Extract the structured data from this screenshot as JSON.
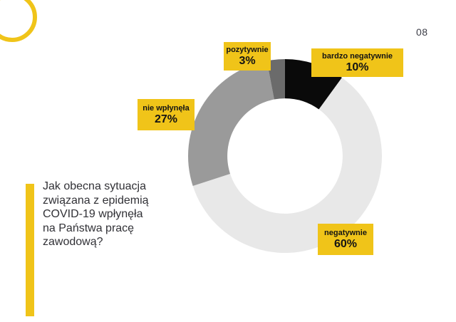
{
  "page": {
    "number": "08",
    "background": "#ffffff",
    "accent_yellow": "#f0c419"
  },
  "question": {
    "text": "Jak obecna sytuacja związana z epidemią COVID-19 wpłynęła na Państwa pracę zawodową?",
    "lines": [
      "Jak obecna sytuacja",
      "związana z epidemią",
      "COVID-19 wpłynęła",
      "na Państwa pracę",
      "zawodową?"
    ]
  },
  "chart_data": {
    "type": "pie",
    "variant": "donut",
    "title": "Jak obecna sytuacja związana z epidemią COVID-19 wpłynęła na Państwa pracę zawodową?",
    "labels": [
      "bardzo negatywnie",
      "negatywnie",
      "nie wpłynęła",
      "pozytywnie"
    ],
    "values": [
      10,
      60,
      27,
      3
    ],
    "unit": "%",
    "colors": [
      "#0a0a0a",
      "#e8e8e8",
      "#9a9a9a",
      "#6b6b6b"
    ],
    "start_angle_deg": 0,
    "clockwise": true,
    "inner_radius_ratio": 0.595,
    "callout_bg": "#f0c419",
    "callouts": [
      {
        "label": "pozytywnie",
        "value": "3%"
      },
      {
        "label": "bardzo negatywnie",
        "value": "10%"
      },
      {
        "label": "nie wpłynęła",
        "value": "27%"
      },
      {
        "label": "negatywnie",
        "value": "60%"
      }
    ]
  },
  "decor": {
    "ring_color": "#f0c419",
    "bar_color": "#f0c419"
  }
}
